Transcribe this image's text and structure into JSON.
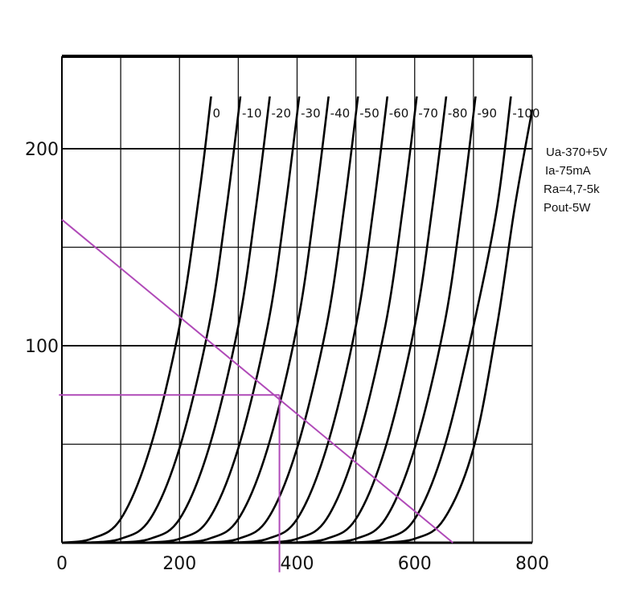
{
  "chart_data": {
    "type": "line",
    "title": "",
    "xlabel": "",
    "ylabel": "",
    "xlim": [
      0,
      800
    ],
    "ylim": [
      0,
      245
    ],
    "x_ticks": [
      0,
      200,
      400,
      600,
      800
    ],
    "x_tick_labels": [
      "0",
      "200",
      "400",
      "600",
      "800"
    ],
    "y_ticks": [
      100,
      200
    ],
    "y_tick_labels": [
      "100",
      "200"
    ],
    "grid": true,
    "grid_x": [
      0,
      100,
      200,
      300,
      400,
      500,
      600,
      700,
      800
    ],
    "grid_y": [
      50,
      100,
      150,
      200
    ],
    "series_style": {
      "color": "#000000"
    },
    "series": [
      {
        "label": "0",
        "points": [
          [
            0,
            0
          ],
          [
            50,
            2
          ],
          [
            100,
            12
          ],
          [
            150,
            48
          ],
          [
            200,
            110
          ],
          [
            235,
            180
          ],
          [
            255,
            230
          ]
        ]
      },
      {
        "label": "-10",
        "points": [
          [
            40,
            0
          ],
          [
            100,
            2
          ],
          [
            150,
            12
          ],
          [
            200,
            48
          ],
          [
            250,
            110
          ],
          [
            280,
            170
          ],
          [
            305,
            230
          ]
        ]
      },
      {
        "label": "-20",
        "points": [
          [
            90,
            0
          ],
          [
            150,
            2
          ],
          [
            200,
            12
          ],
          [
            250,
            48
          ],
          [
            300,
            110
          ],
          [
            330,
            170
          ],
          [
            355,
            230
          ]
        ]
      },
      {
        "label": "-30",
        "points": [
          [
            140,
            0
          ],
          [
            200,
            2
          ],
          [
            250,
            12
          ],
          [
            300,
            48
          ],
          [
            350,
            110
          ],
          [
            380,
            170
          ],
          [
            405,
            230
          ]
        ]
      },
      {
        "label": "-40",
        "points": [
          [
            190,
            0
          ],
          [
            250,
            2
          ],
          [
            300,
            12
          ],
          [
            350,
            48
          ],
          [
            400,
            110
          ],
          [
            430,
            170
          ],
          [
            455,
            230
          ]
        ]
      },
      {
        "label": "-50",
        "points": [
          [
            240,
            0
          ],
          [
            300,
            2
          ],
          [
            350,
            12
          ],
          [
            400,
            48
          ],
          [
            450,
            110
          ],
          [
            480,
            170
          ],
          [
            505,
            230
          ]
        ]
      },
      {
        "label": "-60",
        "points": [
          [
            290,
            0
          ],
          [
            350,
            2
          ],
          [
            400,
            12
          ],
          [
            450,
            48
          ],
          [
            500,
            110
          ],
          [
            530,
            170
          ],
          [
            555,
            230
          ]
        ]
      },
      {
        "label": "-70",
        "points": [
          [
            340,
            0
          ],
          [
            400,
            2
          ],
          [
            450,
            12
          ],
          [
            500,
            48
          ],
          [
            550,
            110
          ],
          [
            580,
            170
          ],
          [
            605,
            230
          ]
        ]
      },
      {
        "label": "-80",
        "points": [
          [
            390,
            0
          ],
          [
            450,
            2
          ],
          [
            500,
            12
          ],
          [
            550,
            48
          ],
          [
            600,
            110
          ],
          [
            630,
            170
          ],
          [
            655,
            230
          ]
        ]
      },
      {
        "label": "-90",
        "points": [
          [
            440,
            0
          ],
          [
            500,
            2
          ],
          [
            550,
            12
          ],
          [
            600,
            48
          ],
          [
            650,
            110
          ],
          [
            680,
            170
          ],
          [
            705,
            230
          ]
        ]
      },
      {
        "label": "-100",
        "points": [
          [
            490,
            0
          ],
          [
            550,
            2
          ],
          [
            600,
            12
          ],
          [
            650,
            48
          ],
          [
            700,
            110
          ],
          [
            740,
            170
          ],
          [
            765,
            230
          ]
        ]
      },
      {
        "label": "",
        "points": [
          [
            540,
            0
          ],
          [
            600,
            2
          ],
          [
            650,
            12
          ],
          [
            700,
            48
          ],
          [
            740,
            110
          ],
          [
            770,
            170
          ],
          [
            800,
            220
          ]
        ]
      }
    ],
    "load_line": {
      "color": "#b04ab8",
      "points": [
        [
          0,
          164
        ],
        [
          665,
          0
        ]
      ]
    },
    "operating_point": {
      "color": "#b04ab8",
      "x": 370,
      "y": 75,
      "x_extent": [
        -5,
        370
      ],
      "y_extent": [
        -15,
        75
      ]
    }
  },
  "annotations": [
    "Ua-370+5V",
    "Ia-75mA",
    "Ra=4,7-5k",
    "Pout-5W"
  ]
}
